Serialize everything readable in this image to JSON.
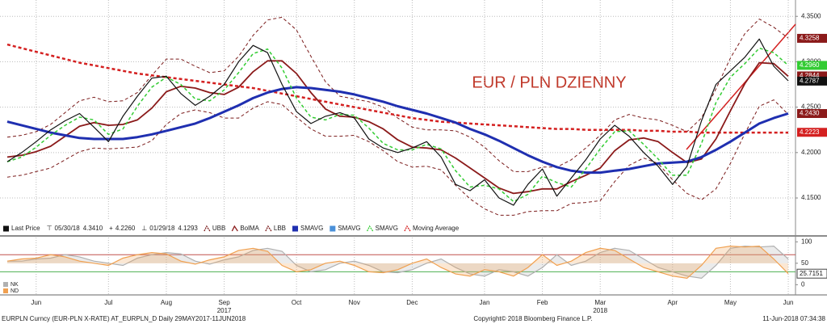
{
  "chart_data": [
    {
      "type": "line",
      "title": "EUR / PLN DZIENNY",
      "categories": [
        null,
        null,
        "Jun",
        null,
        null,
        null,
        null,
        "Jul",
        null,
        null,
        null,
        "Aug",
        null,
        null,
        null,
        "Sep",
        null,
        null,
        null,
        null,
        "Oct",
        null,
        null,
        null,
        "Nov",
        null,
        null,
        null,
        "Dec",
        null,
        null,
        null,
        null,
        "Jan",
        null,
        null,
        null,
        "Feb",
        null,
        null,
        null,
        "Mar",
        null,
        null,
        null,
        null,
        "Apr",
        null,
        null,
        null,
        "May",
        null,
        null,
        null,
        "Jun"
      ],
      "years": [
        null,
        null,
        null,
        null,
        null,
        null,
        null,
        null,
        null,
        null,
        null,
        null,
        null,
        null,
        null,
        "2017",
        null,
        null,
        null,
        null,
        null,
        null,
        null,
        null,
        null,
        null,
        null,
        null,
        null,
        null,
        null,
        null,
        null,
        null,
        null,
        null,
        null,
        null,
        null,
        null,
        null,
        "2018",
        null,
        null,
        null,
        null,
        null,
        null,
        null,
        null,
        null,
        null,
        null,
        null,
        null
      ],
      "ylim": [
        4.126,
        4.368
      ],
      "yticks": [
        {
          "value": 4.35,
          "label": "4.3500"
        },
        {
          "value": 4.3,
          "label": "4.3000"
        },
        {
          "value": 4.25,
          "label": "4.2500"
        },
        {
          "value": 4.2,
          "label": "4.2000"
        },
        {
          "value": 4.15,
          "label": "4.1500"
        }
      ],
      "grid": true,
      "series": [
        {
          "name": "Last Price",
          "color": "#111111",
          "style": "solid",
          "width": 1.2,
          "values": [
            4.19,
            4.2,
            4.212,
            4.225,
            4.235,
            4.243,
            4.228,
            4.212,
            4.24,
            4.262,
            4.282,
            4.284,
            4.265,
            4.252,
            4.262,
            4.275,
            4.3,
            4.318,
            4.31,
            4.275,
            4.245,
            4.232,
            4.24,
            4.244,
            4.238,
            4.215,
            4.205,
            4.2,
            4.205,
            4.212,
            4.195,
            4.165,
            4.158,
            4.17,
            4.15,
            4.142,
            4.165,
            4.182,
            4.152,
            4.172,
            4.192,
            4.215,
            4.23,
            4.218,
            4.2,
            4.185,
            4.165,
            4.185,
            4.235,
            4.275,
            4.29,
            4.305,
            4.325,
            4.295,
            4.279
          ]
        },
        {
          "name": "UBB",
          "color": "#7a1a1a",
          "style": "dashed",
          "width": 1,
          "values": [
            4.217,
            4.219,
            4.223,
            4.231,
            4.244,
            4.257,
            4.261,
            4.256,
            4.257,
            4.266,
            4.285,
            4.303,
            4.303,
            4.295,
            4.288,
            4.29,
            4.306,
            4.329,
            4.346,
            4.349,
            4.335,
            4.306,
            4.278,
            4.262,
            4.259,
            4.256,
            4.25,
            4.238,
            4.228,
            4.225,
            4.225,
            4.224,
            4.217,
            4.206,
            4.191,
            4.179,
            4.179,
            4.184,
            4.184,
            4.192,
            4.205,
            4.219,
            4.236,
            4.242,
            4.238,
            4.236,
            4.23,
            4.223,
            4.238,
            4.27,
            4.304,
            4.331,
            4.347,
            4.338,
            4.326
          ]
        },
        {
          "name": "BolMA",
          "color": "#8b1a1a",
          "style": "solid",
          "width": 1.8,
          "values": [
            4.195,
            4.197,
            4.201,
            4.207,
            4.218,
            4.229,
            4.233,
            4.23,
            4.231,
            4.236,
            4.249,
            4.267,
            4.273,
            4.271,
            4.266,
            4.264,
            4.272,
            4.289,
            4.301,
            4.301,
            4.287,
            4.266,
            4.248,
            4.24,
            4.239,
            4.234,
            4.226,
            4.214,
            4.206,
            4.205,
            4.203,
            4.194,
            4.183,
            4.172,
            4.161,
            4.155,
            4.157,
            4.16,
            4.16,
            4.168,
            4.175,
            4.183,
            4.202,
            4.214,
            4.216,
            4.212,
            4.2,
            4.189,
            4.193,
            4.215,
            4.246,
            4.276,
            4.299,
            4.298,
            4.284
          ]
        },
        {
          "name": "LBB",
          "color": "#7a1a1a",
          "style": "dashed",
          "width": 1,
          "values": [
            4.173,
            4.175,
            4.179,
            4.183,
            4.192,
            4.201,
            4.205,
            4.204,
            4.205,
            4.206,
            4.213,
            4.231,
            4.243,
            4.247,
            4.244,
            4.238,
            4.238,
            4.249,
            4.256,
            4.253,
            4.239,
            4.226,
            4.218,
            4.218,
            4.219,
            4.212,
            4.202,
            4.19,
            4.184,
            4.185,
            4.181,
            4.164,
            4.149,
            4.138,
            4.131,
            4.131,
            4.135,
            4.136,
            4.136,
            4.144,
            4.145,
            4.147,
            4.168,
            4.186,
            4.194,
            4.188,
            4.17,
            4.155,
            4.148,
            4.16,
            4.188,
            4.221,
            4.251,
            4.258,
            4.242
          ]
        },
        {
          "name": "SMAVG",
          "color": "#1f2fb0",
          "style": "solid",
          "width": 3,
          "values": [
            4.234,
            4.23,
            4.226,
            4.222,
            4.219,
            4.216,
            4.215,
            4.215,
            4.215,
            4.217,
            4.22,
            4.224,
            4.228,
            4.232,
            4.238,
            4.245,
            4.252,
            4.26,
            4.266,
            4.27,
            4.272,
            4.271,
            4.269,
            4.267,
            4.264,
            4.26,
            4.256,
            4.251,
            4.247,
            4.243,
            4.238,
            4.233,
            4.226,
            4.22,
            4.213,
            4.205,
            4.197,
            4.19,
            4.184,
            4.18,
            4.178,
            4.178,
            4.18,
            4.182,
            4.185,
            4.188,
            4.189,
            4.19,
            4.195,
            4.203,
            4.212,
            4.222,
            4.232,
            4.238,
            4.243
          ]
        },
        {
          "name": "SMAVG",
          "color": "#33cc33",
          "style": "dashed",
          "width": 1.5,
          "values": [
            4.19,
            4.195,
            4.206,
            4.219,
            4.23,
            4.239,
            4.236,
            4.22,
            4.226,
            4.251,
            4.272,
            4.283,
            4.275,
            4.259,
            4.257,
            4.269,
            4.288,
            4.309,
            4.314,
            4.293,
            4.26,
            4.239,
            4.236,
            4.242,
            4.241,
            4.227,
            4.21,
            4.203,
            4.203,
            4.209,
            4.204,
            4.18,
            4.162,
            4.164,
            4.16,
            4.146,
            4.154,
            4.174,
            4.167,
            4.162,
            4.182,
            4.204,
            4.223,
            4.224,
            4.209,
            4.193,
            4.175,
            4.175,
            4.21,
            4.255,
            4.283,
            4.298,
            4.315,
            4.31,
            4.296
          ]
        },
        {
          "name": "Moving Average",
          "color": "#d42020",
          "style": "dashed",
          "width": 2.5,
          "values": [
            4.319,
            4.315,
            4.311,
            4.307,
            4.303,
            4.299,
            4.296,
            4.293,
            4.29,
            4.287,
            4.285,
            4.283,
            4.281,
            4.279,
            4.277,
            4.275,
            4.273,
            4.271,
            4.268,
            4.265,
            4.262,
            4.259,
            4.256,
            4.253,
            4.25,
            4.247,
            4.244,
            4.241,
            4.238,
            4.236,
            4.234,
            4.233,
            4.232,
            4.231,
            4.23,
            4.229,
            4.228,
            4.227,
            4.226,
            4.226,
            4.225,
            4.225,
            4.225,
            4.225,
            4.224,
            4.224,
            4.223,
            4.223,
            4.222,
            4.222,
            4.222,
            4.222,
            4.222,
            4.222,
            4.222
          ]
        }
      ],
      "legend_extra": {
        "name": "SMAVG",
        "color": "#4a90d9",
        "after": 4
      },
      "stats": [
        {
          "symbol": "⊤",
          "date": "05/30/18",
          "value": 4.341,
          "value_label": "4.3410"
        },
        {
          "symbol": "+",
          "value": 4.226,
          "value_label": "4.2260"
        },
        {
          "symbol": "⊥",
          "date": "01/29/18",
          "value": 4.1293,
          "value_label": "4.1293"
        }
      ],
      "tags": [
        {
          "value": 4.3258,
          "label": "4.3258",
          "color": "#8b1a1a"
        },
        {
          "value": 4.296,
          "label": "4.2960",
          "color": "#33cc33"
        },
        {
          "value": 4.2844,
          "label": "4.2844",
          "color": "#8b1a1a"
        },
        {
          "value": 4.2787,
          "label": "4.2787",
          "color": "#111111"
        },
        {
          "value": 4.243,
          "label": "4.2430",
          "color": "#8b1a1a"
        },
        {
          "value": 4.2223,
          "label": "4.2223",
          "color": "#d42020"
        }
      ]
    },
    {
      "type": "line",
      "ylim": [
        -22,
        110
      ],
      "yticks": [
        100,
        50,
        0
      ],
      "levels": [
        {
          "value": 70,
          "color": "#c0504d"
        },
        {
          "value": 30,
          "color": "#4caf50"
        }
      ],
      "series": [
        {
          "name": "NK",
          "color": "#b0b0b0",
          "values": [
            55,
            55,
            60,
            62,
            70,
            65,
            55,
            50,
            45,
            62,
            70,
            75,
            72,
            55,
            48,
            58,
            65,
            80,
            85,
            78,
            45,
            30,
            35,
            50,
            55,
            45,
            30,
            28,
            35,
            50,
            60,
            40,
            25,
            20,
            35,
            30,
            20,
            40,
            70,
            45,
            55,
            75,
            85,
            80,
            60,
            40,
            30,
            20,
            15,
            45,
            85,
            90,
            88,
            90,
            60
          ]
        },
        {
          "name": "ND",
          "color": "#f0a050",
          "values": [
            55,
            60,
            62,
            70,
            65,
            55,
            50,
            45,
            62,
            70,
            75,
            72,
            55,
            48,
            58,
            65,
            80,
            85,
            78,
            45,
            30,
            35,
            50,
            55,
            45,
            30,
            28,
            35,
            50,
            60,
            40,
            25,
            20,
            35,
            30,
            20,
            40,
            70,
            45,
            55,
            75,
            85,
            80,
            60,
            40,
            30,
            20,
            15,
            45,
            85,
            90,
            88,
            90,
            60,
            25.7151
          ]
        }
      ],
      "tags": [
        {
          "value": 25.7151,
          "label": "25.7151",
          "color": "#ffffff"
        }
      ]
    }
  ],
  "footer": {
    "left": "EURPLN Curncy (EUR-PLN X-RATE) AT_EURPLN_D  Daily 29MAY2017-11JUN2018",
    "center": "Copyright© 2018 Bloomberg Finance L.P.",
    "right": "11-Jun-2018 07:34:38"
  }
}
